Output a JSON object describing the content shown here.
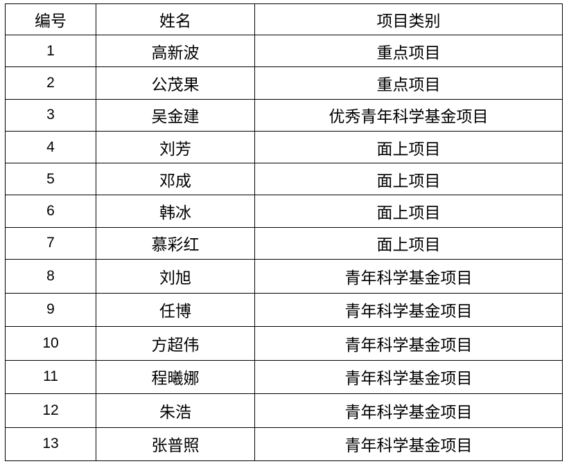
{
  "headers": [
    "编号",
    "姓名",
    "项目类别"
  ],
  "rows": [
    [
      "1",
      "高新波",
      "重点项目"
    ],
    [
      "2",
      "公茂果",
      "重点项目"
    ],
    [
      "3",
      "吴金建",
      "优秀青年科学基金项目"
    ],
    [
      "4",
      "刘芳",
      "面上项目"
    ],
    [
      "5",
      "邓成",
      "面上项目"
    ],
    [
      "6",
      "韩冰",
      "面上项目"
    ],
    [
      "7",
      "慕彩红",
      "面上项目"
    ],
    [
      "8",
      "刘旭",
      "青年科学基金项目"
    ],
    [
      "9",
      "任博",
      "青年科学基金项目"
    ],
    [
      "10",
      "方超伟",
      "青年科学基金项目"
    ],
    [
      "11",
      "程曦娜",
      "青年科学基金项目"
    ],
    [
      "12",
      "朱浩",
      "青年科学基金项目"
    ],
    [
      "13",
      "张普照",
      "青年科学基金项目"
    ]
  ]
}
